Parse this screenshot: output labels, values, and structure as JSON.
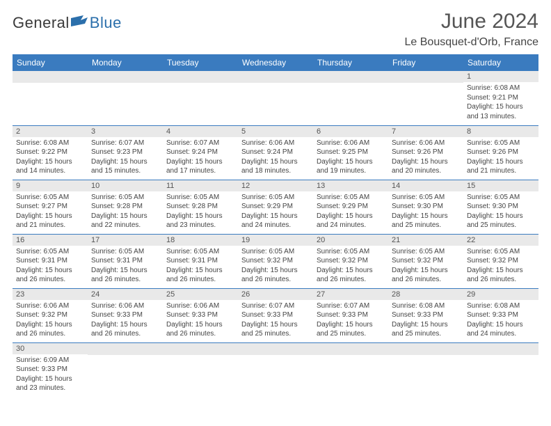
{
  "logo": {
    "part1": "General",
    "part2": "Blue",
    "flag_color": "#2b6fab"
  },
  "title": {
    "month": "June 2024",
    "location": "Le Bousquet-d'Orb, France"
  },
  "colors": {
    "header_bg": "#3a7bbf",
    "daybar_bg": "#e9e9e9",
    "border": "#3a7bbf"
  },
  "weekdays": [
    "Sunday",
    "Monday",
    "Tuesday",
    "Wednesday",
    "Thursday",
    "Friday",
    "Saturday"
  ],
  "weeks": [
    [
      {
        "n": "",
        "sr": "",
        "ss": "",
        "dl": ""
      },
      {
        "n": "",
        "sr": "",
        "ss": "",
        "dl": ""
      },
      {
        "n": "",
        "sr": "",
        "ss": "",
        "dl": ""
      },
      {
        "n": "",
        "sr": "",
        "ss": "",
        "dl": ""
      },
      {
        "n": "",
        "sr": "",
        "ss": "",
        "dl": ""
      },
      {
        "n": "",
        "sr": "",
        "ss": "",
        "dl": ""
      },
      {
        "n": "1",
        "sr": "Sunrise: 6:08 AM",
        "ss": "Sunset: 9:21 PM",
        "dl": "Daylight: 15 hours and 13 minutes."
      }
    ],
    [
      {
        "n": "2",
        "sr": "Sunrise: 6:08 AM",
        "ss": "Sunset: 9:22 PM",
        "dl": "Daylight: 15 hours and 14 minutes."
      },
      {
        "n": "3",
        "sr": "Sunrise: 6:07 AM",
        "ss": "Sunset: 9:23 PM",
        "dl": "Daylight: 15 hours and 15 minutes."
      },
      {
        "n": "4",
        "sr": "Sunrise: 6:07 AM",
        "ss": "Sunset: 9:24 PM",
        "dl": "Daylight: 15 hours and 17 minutes."
      },
      {
        "n": "5",
        "sr": "Sunrise: 6:06 AM",
        "ss": "Sunset: 9:24 PM",
        "dl": "Daylight: 15 hours and 18 minutes."
      },
      {
        "n": "6",
        "sr": "Sunrise: 6:06 AM",
        "ss": "Sunset: 9:25 PM",
        "dl": "Daylight: 15 hours and 19 minutes."
      },
      {
        "n": "7",
        "sr": "Sunrise: 6:06 AM",
        "ss": "Sunset: 9:26 PM",
        "dl": "Daylight: 15 hours and 20 minutes."
      },
      {
        "n": "8",
        "sr": "Sunrise: 6:05 AM",
        "ss": "Sunset: 9:26 PM",
        "dl": "Daylight: 15 hours and 21 minutes."
      }
    ],
    [
      {
        "n": "9",
        "sr": "Sunrise: 6:05 AM",
        "ss": "Sunset: 9:27 PM",
        "dl": "Daylight: 15 hours and 21 minutes."
      },
      {
        "n": "10",
        "sr": "Sunrise: 6:05 AM",
        "ss": "Sunset: 9:28 PM",
        "dl": "Daylight: 15 hours and 22 minutes."
      },
      {
        "n": "11",
        "sr": "Sunrise: 6:05 AM",
        "ss": "Sunset: 9:28 PM",
        "dl": "Daylight: 15 hours and 23 minutes."
      },
      {
        "n": "12",
        "sr": "Sunrise: 6:05 AM",
        "ss": "Sunset: 9:29 PM",
        "dl": "Daylight: 15 hours and 24 minutes."
      },
      {
        "n": "13",
        "sr": "Sunrise: 6:05 AM",
        "ss": "Sunset: 9:29 PM",
        "dl": "Daylight: 15 hours and 24 minutes."
      },
      {
        "n": "14",
        "sr": "Sunrise: 6:05 AM",
        "ss": "Sunset: 9:30 PM",
        "dl": "Daylight: 15 hours and 25 minutes."
      },
      {
        "n": "15",
        "sr": "Sunrise: 6:05 AM",
        "ss": "Sunset: 9:30 PM",
        "dl": "Daylight: 15 hours and 25 minutes."
      }
    ],
    [
      {
        "n": "16",
        "sr": "Sunrise: 6:05 AM",
        "ss": "Sunset: 9:31 PM",
        "dl": "Daylight: 15 hours and 26 minutes."
      },
      {
        "n": "17",
        "sr": "Sunrise: 6:05 AM",
        "ss": "Sunset: 9:31 PM",
        "dl": "Daylight: 15 hours and 26 minutes."
      },
      {
        "n": "18",
        "sr": "Sunrise: 6:05 AM",
        "ss": "Sunset: 9:31 PM",
        "dl": "Daylight: 15 hours and 26 minutes."
      },
      {
        "n": "19",
        "sr": "Sunrise: 6:05 AM",
        "ss": "Sunset: 9:32 PM",
        "dl": "Daylight: 15 hours and 26 minutes."
      },
      {
        "n": "20",
        "sr": "Sunrise: 6:05 AM",
        "ss": "Sunset: 9:32 PM",
        "dl": "Daylight: 15 hours and 26 minutes."
      },
      {
        "n": "21",
        "sr": "Sunrise: 6:05 AM",
        "ss": "Sunset: 9:32 PM",
        "dl": "Daylight: 15 hours and 26 minutes."
      },
      {
        "n": "22",
        "sr": "Sunrise: 6:05 AM",
        "ss": "Sunset: 9:32 PM",
        "dl": "Daylight: 15 hours and 26 minutes."
      }
    ],
    [
      {
        "n": "23",
        "sr": "Sunrise: 6:06 AM",
        "ss": "Sunset: 9:32 PM",
        "dl": "Daylight: 15 hours and 26 minutes."
      },
      {
        "n": "24",
        "sr": "Sunrise: 6:06 AM",
        "ss": "Sunset: 9:33 PM",
        "dl": "Daylight: 15 hours and 26 minutes."
      },
      {
        "n": "25",
        "sr": "Sunrise: 6:06 AM",
        "ss": "Sunset: 9:33 PM",
        "dl": "Daylight: 15 hours and 26 minutes."
      },
      {
        "n": "26",
        "sr": "Sunrise: 6:07 AM",
        "ss": "Sunset: 9:33 PM",
        "dl": "Daylight: 15 hours and 25 minutes."
      },
      {
        "n": "27",
        "sr": "Sunrise: 6:07 AM",
        "ss": "Sunset: 9:33 PM",
        "dl": "Daylight: 15 hours and 25 minutes."
      },
      {
        "n": "28",
        "sr": "Sunrise: 6:08 AM",
        "ss": "Sunset: 9:33 PM",
        "dl": "Daylight: 15 hours and 25 minutes."
      },
      {
        "n": "29",
        "sr": "Sunrise: 6:08 AM",
        "ss": "Sunset: 9:33 PM",
        "dl": "Daylight: 15 hours and 24 minutes."
      }
    ],
    [
      {
        "n": "30",
        "sr": "Sunrise: 6:09 AM",
        "ss": "Sunset: 9:33 PM",
        "dl": "Daylight: 15 hours and 23 minutes."
      },
      {
        "n": "",
        "sr": "",
        "ss": "",
        "dl": ""
      },
      {
        "n": "",
        "sr": "",
        "ss": "",
        "dl": ""
      },
      {
        "n": "",
        "sr": "",
        "ss": "",
        "dl": ""
      },
      {
        "n": "",
        "sr": "",
        "ss": "",
        "dl": ""
      },
      {
        "n": "",
        "sr": "",
        "ss": "",
        "dl": ""
      },
      {
        "n": "",
        "sr": "",
        "ss": "",
        "dl": ""
      }
    ]
  ]
}
